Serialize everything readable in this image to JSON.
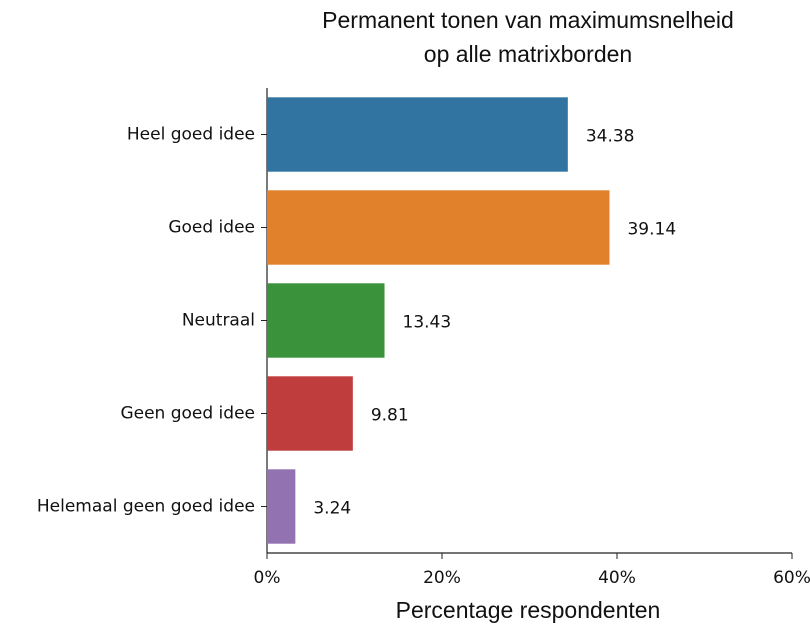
{
  "chart_data": {
    "type": "barh",
    "title": [
      "Permanent tonen van maximumsnelheid",
      "op alle matrixborden"
    ],
    "categories": [
      "Heel goed idee",
      "Goed idee",
      "Neutraal",
      "Geen goed idee",
      "Helemaal geen goed idee"
    ],
    "values": [
      34.38,
      39.14,
      13.43,
      9.81,
      3.24
    ],
    "colors": [
      "#3274a1",
      "#e1812c",
      "#3a923a",
      "#c03d3e",
      "#9372b2"
    ],
    "xlabel": "Percentage respondenten",
    "xlim": [
      0,
      60
    ],
    "xticks": [
      {
        "value": 0,
        "label": "0%"
      },
      {
        "value": 20,
        "label": "20%"
      },
      {
        "value": 40,
        "label": "40%"
      },
      {
        "value": 60,
        "label": "60%"
      }
    ]
  }
}
